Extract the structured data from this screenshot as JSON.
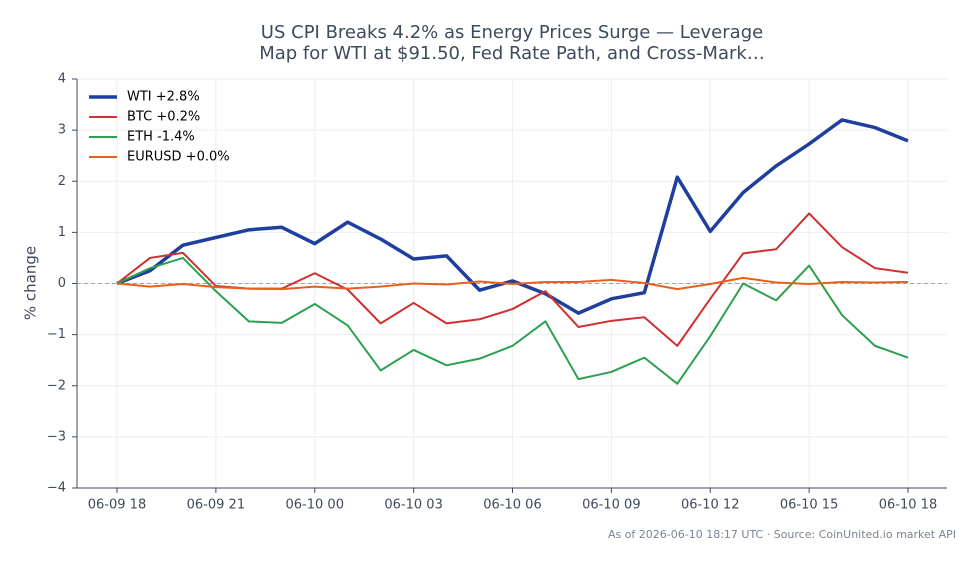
{
  "chart_data": {
    "type": "line",
    "title": [
      "US CPI Breaks 4.2% as Energy Prices Surge — Leverage",
      "Map for WTI at $91.50, Fed Rate Path, and Cross-Mark…"
    ],
    "y_label": "% change",
    "source": "As of 2026-06-10 18:17 UTC · Source: CoinUnited.io market API",
    "categories": [
      "06-09 18",
      null,
      null,
      "06-09 21",
      null,
      null,
      "06-10 00",
      null,
      null,
      "06-10 03",
      null,
      null,
      "06-10 06",
      null,
      null,
      "06-10 09",
      null,
      null,
      "06-10 12",
      null,
      null,
      "06-10 15",
      null,
      null,
      "06-10 18"
    ],
    "series": [
      {
        "name": "WTI +2.8%",
        "color": "#1f3f9f",
        "width": 3.5,
        "values": [
          0,
          0.25,
          0.75,
          0.9,
          1.05,
          1.1,
          0.78,
          1.2,
          0.87,
          0.48,
          0.54,
          -0.13,
          0.05,
          -0.2,
          -0.58,
          -0.3,
          -0.18,
          2.08,
          1.02,
          1.78,
          2.3,
          2.73,
          3.2,
          3.05,
          2.79
        ]
      },
      {
        "name": "BTC +0.2%",
        "color": "#d03030",
        "width": 2,
        "values": [
          0,
          0.5,
          0.6,
          -0.05,
          -0.1,
          -0.1,
          0.2,
          -0.12,
          -0.78,
          -0.38,
          -0.78,
          -0.7,
          -0.5,
          -0.15,
          -0.85,
          -0.73,
          -0.66,
          -1.22,
          -0.3,
          0.59,
          0.67,
          1.37,
          0.71,
          0.3,
          0.21
        ]
      },
      {
        "name": "ETH -1.4%",
        "color": "#2ca050",
        "width": 2,
        "values": [
          0,
          0.3,
          0.5,
          -0.15,
          -0.74,
          -0.77,
          -0.4,
          -0.82,
          -1.7,
          -1.3,
          -1.6,
          -1.47,
          -1.22,
          -0.74,
          -1.87,
          -1.73,
          -1.45,
          -1.96,
          -1.03,
          0,
          -0.33,
          0.35,
          -0.62,
          -1.22,
          -1.45
        ]
      },
      {
        "name": "EURUSD +0.0%",
        "color": "#e8601c",
        "width": 2,
        "values": [
          0,
          -0.06,
          -0.01,
          -0.07,
          -0.1,
          -0.11,
          -0.06,
          -0.1,
          -0.06,
          0,
          -0.02,
          0.04,
          -0.01,
          0.03,
          0.03,
          0.07,
          0.01,
          -0.11,
          -0.01,
          0.11,
          0.02,
          -0.01,
          0.03,
          0.02,
          0.03
        ]
      }
    ],
    "ylim": [
      -4,
      4
    ],
    "yticks": [
      {
        "value": -4,
        "label": "−4"
      },
      {
        "value": -3,
        "label": "−3"
      },
      {
        "value": -2,
        "label": "−2"
      },
      {
        "value": -1,
        "label": "−1"
      },
      0,
      1,
      2,
      3,
      4
    ],
    "reference_line": 0,
    "grid": true,
    "legend": "upper-left"
  }
}
